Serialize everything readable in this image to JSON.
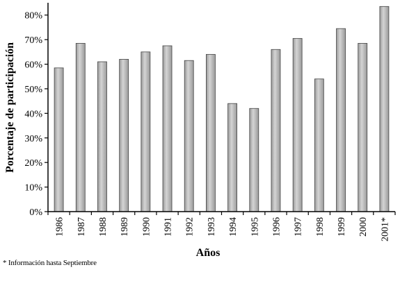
{
  "chart_data": {
    "type": "bar",
    "categories": [
      "1986",
      "1987",
      "1988",
      "1989",
      "1990",
      "1991",
      "1992",
      "1993",
      "1994",
      "1995",
      "1996",
      "1997",
      "1998",
      "1999",
      "2000",
      "2001*"
    ],
    "series": [
      {
        "values": [
          58.5,
          68.5,
          61,
          62,
          65,
          67.5,
          61.5,
          64,
          44,
          42,
          66,
          70.5,
          54,
          74.5,
          68.5,
          83.5
        ]
      }
    ],
    "xlabel": "Años",
    "ylabel": "Porcentaje de participación",
    "ylim": [
      0,
      85
    ],
    "yticks": [
      0,
      10,
      20,
      30,
      40,
      50,
      60,
      70,
      80
    ],
    "ytick_labels": [
      "0%",
      "10%",
      "20%",
      "30%",
      "40%",
      "50%",
      "60%",
      "70%",
      "80%"
    ],
    "grid": false,
    "legend": "none",
    "bar_color": "#9a9a9a",
    "bar_highlight_color": "#d4d4d4",
    "bar_edge_color": "#444444"
  },
  "footnote": "* Información hasta Septiembre"
}
